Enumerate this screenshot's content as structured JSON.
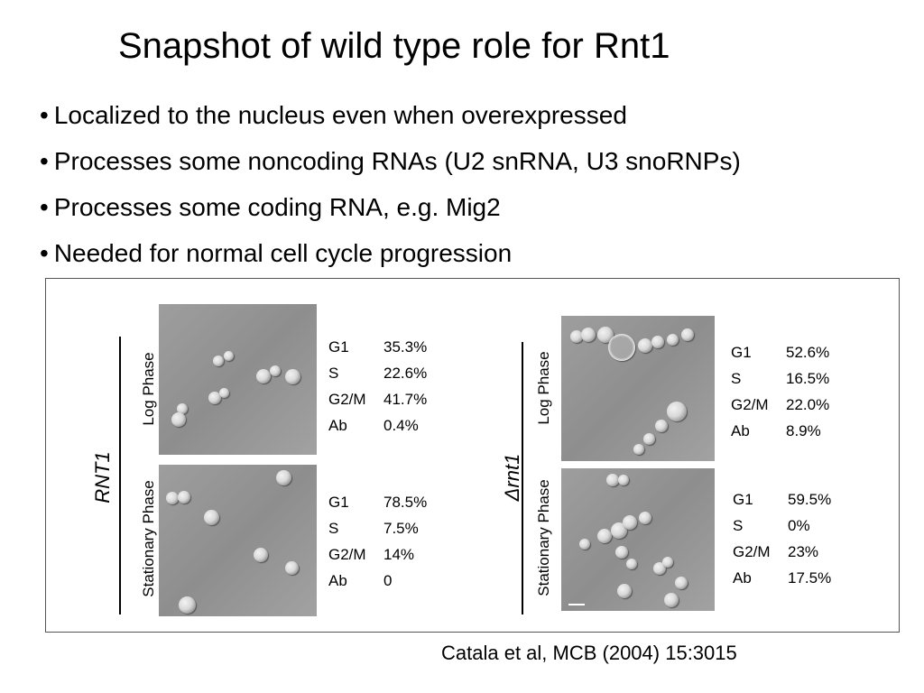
{
  "slide": {
    "title": "Snapshot of wild type role for Rnt1",
    "bullets": [
      "Localized to the nucleus even when overexpressed",
      "Processes some noncoding RNAs (U2 snRNA, U3 snoRNPs)",
      "Processes some coding RNA, e.g. Mig2",
      "Needed for normal cell cycle progression"
    ],
    "bullet_symbol": "•",
    "citation": "Catala et al, MCB (2004) 15:3015"
  },
  "figure": {
    "strain_left": "RNT1",
    "strain_right": "Δrnt1",
    "phase_log": "Log Phase",
    "phase_stationary": "Stationary Phase",
    "panels": {
      "rnt1_log": [
        {
          "label": "G1",
          "value": "35.3%"
        },
        {
          "label": "S",
          "value": "22.6%"
        },
        {
          "label": "G2/M",
          "value": "41.7%"
        },
        {
          "label": "Ab",
          "value": "0.4%"
        }
      ],
      "rnt1_stationary": [
        {
          "label": "G1",
          "value": "78.5%"
        },
        {
          "label": "S",
          "value": "7.5%"
        },
        {
          "label": "G2/M",
          "value": "14%"
        },
        {
          "label": "Ab",
          "value": "0"
        }
      ],
      "drnt1_log": [
        {
          "label": "G1",
          "value": "52.6%"
        },
        {
          "label": "S",
          "value": "16.5%"
        },
        {
          "label": "G2/M",
          "value": "22.0%"
        },
        {
          "label": "Ab",
          "value": "8.9%"
        }
      ],
      "drnt1_stationary": [
        {
          "label": "G1",
          "value": "59.5%"
        },
        {
          "label": "S",
          "value": "0%"
        },
        {
          "label": "G2/M",
          "value": "23%"
        },
        {
          "label": "Ab",
          "value": "17.5%"
        }
      ]
    }
  }
}
